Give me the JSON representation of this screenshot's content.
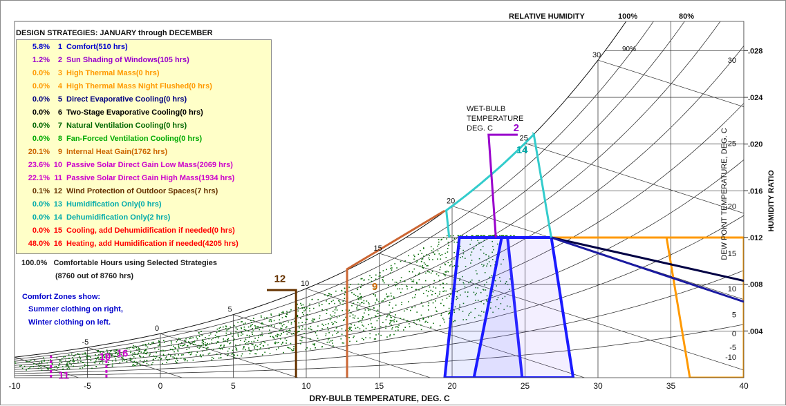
{
  "chart_data": {
    "type": "scatter",
    "subtype": "psychrometric-chart",
    "title": "DESIGN STRATEGIES:  JANUARY through DECEMBER",
    "xlabel": "DRY-BULB TEMPERATURE, DEG. C",
    "ylabel": "HUMIDITY RATIO",
    "y2label": "DEW POINT TEMPERATURE, DEG. C",
    "top_label": "RELATIVE HUMIDITY",
    "wetbulb_label": [
      "WET-BULB",
      "TEMPERATURE",
      "DEG. C"
    ],
    "xlim": [
      -10,
      40
    ],
    "ylim": [
      0,
      0.0305
    ],
    "x_ticks": [
      "-10",
      "-5",
      "0",
      "5",
      "10",
      "15",
      "20",
      "25",
      "30",
      "35",
      "40"
    ],
    "y_ticks": [
      ".004",
      ".008",
      ".012",
      ".016",
      ".020",
      ".024",
      ".028"
    ],
    "dewpoint_ticks": [
      "-10",
      "-5",
      "0",
      "5",
      "10",
      "15",
      "20",
      "25",
      "30"
    ],
    "rh_labels": [
      "100%",
      "80%",
      "90%"
    ],
    "wetbulb_ticks": [
      "-5",
      "0",
      "5",
      "10",
      "15",
      "20",
      "25",
      "30"
    ],
    "rh_lines": [
      100,
      90,
      80,
      70,
      60,
      50,
      40,
      30,
      20,
      10
    ],
    "grid": true,
    "legend_position": "top-left",
    "strategies": [
      {
        "pct": "5.8%",
        "num": "1",
        "label": "Comfort(510 hrs)",
        "color": "#0000cc"
      },
      {
        "pct": "1.2%",
        "num": "2",
        "label": "Sun Shading of Windows(105 hrs)",
        "color": "#9900cc"
      },
      {
        "pct": "0.0%",
        "num": "3",
        "label": "High Thermal Mass(0 hrs)",
        "color": "#ff9900"
      },
      {
        "pct": "0.0%",
        "num": "4",
        "label": "High Thermal Mass Night Flushed(0 hrs)",
        "color": "#ff9900"
      },
      {
        "pct": "0.0%",
        "num": "5",
        "label": "Direct Evaporative Cooling(0 hrs)",
        "color": "#000080"
      },
      {
        "pct": "0.0%",
        "num": "6",
        "label": "Two-Stage Evaporative Cooling(0 hrs)",
        "color": "#000000"
      },
      {
        "pct": "0.0%",
        "num": "7",
        "label": "Natural Ventilation Cooling(0 hrs)",
        "color": "#006600"
      },
      {
        "pct": "0.0%",
        "num": "8",
        "label": "Fan-Forced Ventilation Cooling(0 hrs)",
        "color": "#00aa00"
      },
      {
        "pct": "20.1%",
        "num": "9",
        "label": "Internal Heat Gain(1762 hrs)",
        "color": "#cc6600"
      },
      {
        "pct": "23.6%",
        "num": "10",
        "label": "Passive Solar Direct Gain Low Mass(2069 hrs)",
        "color": "#cc00cc"
      },
      {
        "pct": "22.1%",
        "num": "11",
        "label": "Passive Solar Direct Gain High Mass(1934 hrs)",
        "color": "#cc00cc"
      },
      {
        "pct": "0.1%",
        "num": "12",
        "label": "Wind Protection of Outdoor Spaces(7 hrs)",
        "color": "#663300"
      },
      {
        "pct": "0.0%",
        "num": "13",
        "label": "Humidification Only(0 hrs)",
        "color": "#00aaaa"
      },
      {
        "pct": "0.0%",
        "num": "14",
        "label": "Dehumidification Only(2 hrs)",
        "color": "#00aaaa"
      },
      {
        "pct": "0.0%",
        "num": "15",
        "label": "Cooling, add Dehumidification if needed(0 hrs)",
        "color": "#ff0000"
      },
      {
        "pct": "48.0%",
        "num": "16",
        "label": "Heating, add Humidification if needed(4205 hrs)",
        "color": "#ff0000"
      }
    ],
    "total_line": {
      "pct": "100.0%",
      "label": "Comfortable Hours using Selected Strategies",
      "sub": "(8760 out of 8760 hrs)"
    },
    "comfort_note": [
      "Comfort Zones show:",
      "Summer clothing on right,",
      "Winter clothing on left."
    ],
    "zones": {
      "comfort_winter": [
        [
          19.5,
          0
        ],
        [
          20.5,
          0.012
        ],
        [
          23.8,
          0.012
        ],
        [
          24.8,
          0
        ]
      ],
      "comfort_summer": [
        [
          21.5,
          0
        ],
        [
          23.4,
          0.012
        ],
        [
          26.8,
          0.012
        ],
        [
          28.3,
          0
        ]
      ],
      "internal_gain": [
        [
          12.8,
          0
        ],
        [
          12.8,
          0.0093
        ],
        [
          19.5,
          0.0143
        ]
      ],
      "sun_shading": [
        [
          23,
          0.012
        ],
        [
          22.5,
          0.0208
        ],
        [
          24.5,
          0.0208
        ]
      ],
      "wind_protection": [
        [
          9.3,
          0
        ],
        [
          9.3,
          0.0075
        ],
        [
          7.3,
          0.0075
        ]
      ],
      "dehumidification": [
        [
          26.8,
          0.012
        ],
        [
          25.6,
          0.0221
        ],
        [
          19.5,
          0.0143
        ],
        [
          19.8,
          0.012
        ]
      ],
      "high_mass": [
        [
          26.8,
          0.012
        ],
        [
          40,
          0.012
        ],
        [
          40,
          0.0
        ],
        [
          36.3,
          0.0
        ],
        [
          34.7,
          0.012
        ]
      ],
      "evap_direct": [
        [
          26.8,
          0.012
        ],
        [
          40,
          0.0065
        ]
      ],
      "evap_two_stage": [
        [
          26.8,
          0.012
        ],
        [
          40,
          0.0083
        ]
      ]
    },
    "zone_labels": [
      {
        "text": "2",
        "x": 24.2,
        "y": 0.0211,
        "color": "#9900cc"
      },
      {
        "text": "14",
        "x": 24.4,
        "y": 0.0192,
        "color": "#00aaaa"
      },
      {
        "text": "12",
        "x": 7.8,
        "y": 0.0082,
        "color": "#663300"
      },
      {
        "text": "10",
        "x": -4.2,
        "y": 0.0015,
        "color": "#cc00cc"
      },
      {
        "text": "16",
        "x": -3.0,
        "y": 0.0018,
        "color": "#cc00cc"
      },
      {
        "text": "11",
        "x": -7.0,
        "y": -0.0001,
        "color": "#cc00cc"
      },
      {
        "text": "9",
        "x": 14.5,
        "y": 0.0075,
        "color": "#cc6600"
      }
    ],
    "scatter": {
      "series_name": "hourly weather data",
      "count": 1500,
      "color": "#0a6e0a",
      "seed": 7
    }
  }
}
